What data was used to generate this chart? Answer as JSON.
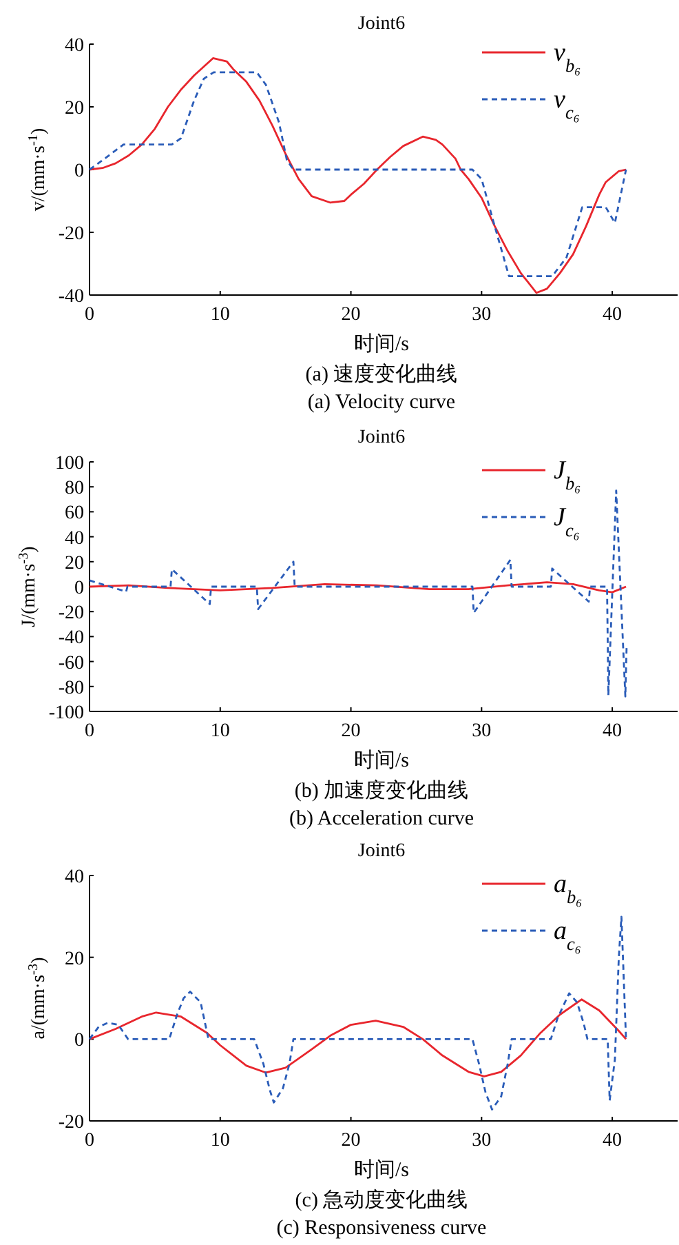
{
  "chart_data": [
    {
      "type": "line",
      "title": "Joint6",
      "xlabel": "时间/s",
      "ylabel": "v/(mm·s$^{-1}$)",
      "xlim": [
        0,
        45
      ],
      "xticks": [
        0,
        10,
        20,
        30,
        40
      ],
      "ylim": [
        -40,
        40
      ],
      "yticks": [
        -40,
        -20,
        0,
        20,
        40
      ],
      "legend": "top right",
      "grid": false,
      "marker": "none",
      "annotations": [
        "(a) 速度变化曲线",
        "(a) Velocity curve"
      ],
      "series": [
        {
          "name": "v$_{b₆}$",
          "color": "#e8262d",
          "line_style": "solid",
          "x": [
            0,
            1,
            2,
            3,
            4,
            5,
            6,
            7,
            8,
            9.45,
            10.5,
            11,
            12,
            13,
            14,
            15,
            16,
            17,
            18.4,
            19.5,
            20,
            21,
            22,
            23,
            24,
            25.5,
            26.5,
            27,
            28,
            28.4,
            29,
            30,
            31,
            32,
            33,
            34.2,
            35,
            36,
            37,
            38,
            39,
            39.5,
            40.5,
            41.05
          ],
          "values": [
            0,
            0.5,
            2,
            4.5,
            8,
            13,
            20,
            25.5,
            30,
            35.5,
            34.5,
            32,
            28,
            22,
            14,
            5,
            -3,
            -8.5,
            -10.5,
            -10,
            -8,
            -4.5,
            0,
            4,
            7.5,
            10.5,
            9.5,
            8,
            3.5,
            0,
            -3,
            -9,
            -18,
            -26,
            -33,
            -39.3,
            -38,
            -33,
            -27,
            -18,
            -8,
            -4,
            -0.5,
            0
          ]
        },
        {
          "name": "v$_{c₆}$",
          "color": "#2a5cb8",
          "line_style": "dashed",
          "x": [
            0,
            1,
            2.6,
            6.3,
            7,
            8,
            8.75,
            9.5,
            12.8,
            13.5,
            14.5,
            15.1,
            15.6,
            29.3,
            30,
            31,
            32.1,
            35.4,
            36.5,
            37.7,
            39.5,
            40.2,
            41.05
          ],
          "values": [
            0,
            3,
            8,
            8,
            10,
            22,
            29,
            31,
            31,
            27,
            15,
            3,
            0,
            0,
            -3,
            -18,
            -34,
            -34,
            -28,
            -12,
            -12,
            -17,
            0
          ]
        }
      ]
    },
    {
      "type": "line",
      "title": "Joint6",
      "xlabel": "时间/s",
      "ylabel": "J/(mm·s$^{-3}$)",
      "xlim": [
        0,
        45
      ],
      "xticks": [
        0,
        10,
        20,
        30,
        40
      ],
      "ylim": [
        -100,
        100
      ],
      "yticks": [
        -100,
        -80,
        -60,
        -40,
        -20,
        0,
        20,
        40,
        60,
        80,
        100
      ],
      "legend": "top right",
      "grid": false,
      "marker": "none",
      "annotations": [
        "(b) 加速度变化曲线",
        "(b) Acceleration curve"
      ],
      "series": [
        {
          "name": "J$_{b₆}$",
          "color": "#e8262d",
          "line_style": "solid",
          "x": [
            0,
            3,
            6,
            10,
            14,
            18,
            22,
            26,
            29,
            32,
            35,
            37,
            39,
            40,
            41.05
          ],
          "values": [
            0,
            1,
            -1,
            -3,
            -1,
            2,
            1,
            -2,
            -2,
            1,
            3.5,
            2,
            -3,
            -4.5,
            0
          ]
        },
        {
          "name": "J$_{c₆}$",
          "color": "#2a5cb8",
          "line_style": "dashed",
          "x": [
            0,
            2.8,
            2.9,
            6.2,
            6.3,
            9.2,
            9.3,
            12.8,
            12.9,
            15.6,
            15.7,
            29.3,
            29.4,
            32.2,
            32.3,
            35.3,
            35.4,
            38.2,
            38.3,
            39.6,
            39.7,
            40.3,
            41.0,
            41.1
          ],
          "values": [
            5,
            -4,
            0,
            0,
            14,
            -14,
            0,
            0,
            -18,
            20,
            0,
            0,
            -21,
            21.5,
            0,
            0,
            14.5,
            -12,
            0,
            0,
            -87,
            77,
            -88,
            -47
          ]
        }
      ]
    },
    {
      "type": "line",
      "title": "Joint6",
      "xlabel": "时间/s",
      "ylabel": "a/(mm·s$^{-3}$)",
      "xlim": [
        0,
        45
      ],
      "xticks": [
        0,
        10,
        20,
        30,
        40
      ],
      "ylim": [
        -20,
        40
      ],
      "yticks": [
        -20,
        0,
        20,
        40
      ],
      "legend": "top right",
      "grid": false,
      "marker": "none",
      "annotations": [
        "(c) 急动度变化曲线",
        "(c) Responsiveness curve"
      ],
      "series": [
        {
          "name": "a$_{b₆}$",
          "color": "#e8262d",
          "line_style": "solid",
          "x": [
            0,
            2,
            4,
            5.1,
            7,
            9,
            10,
            12,
            13.5,
            15,
            17,
            18.5,
            20,
            21.9,
            24,
            25.5,
            27,
            29,
            30.2,
            31.5,
            33,
            34.5,
            36,
            37.65,
            39,
            40.5,
            41.05
          ],
          "values": [
            0,
            2.5,
            5.5,
            6.5,
            5.5,
            1.5,
            -1.5,
            -6.5,
            -8.2,
            -7,
            -2.5,
            1,
            3.5,
            4.5,
            3,
            0,
            -4,
            -8,
            -9.1,
            -8,
            -4,
            1.5,
            6,
            9.7,
            7,
            2,
            0
          ]
        },
        {
          "name": "a$_{c₆}$",
          "color": "#2a5cb8",
          "line_style": "dashed",
          "x": [
            0,
            0.7,
            1.4,
            2.2,
            2.95,
            6.1,
            6.7,
            7.2,
            7.7,
            8.5,
            9.1,
            12.6,
            13.3,
            13.8,
            14.1,
            14.8,
            15.3,
            15.6,
            29.3,
            29.8,
            30.3,
            30.8,
            31.5,
            32,
            32.3,
            35.3,
            35.8,
            36.7,
            37.3,
            37.8,
            38.1,
            39.65,
            39.8,
            40.2,
            40.5,
            40.7,
            41.05
          ],
          "values": [
            0,
            3,
            4,
            3.5,
            0,
            0,
            6,
            10,
            11.6,
            9,
            0,
            0,
            -6,
            -12.5,
            -15.5,
            -12,
            -6,
            0,
            0,
            -6,
            -13,
            -17.2,
            -14,
            -6,
            0,
            0,
            5,
            11.2,
            9,
            4,
            0,
            0,
            -15,
            -5,
            20,
            29.9,
            0
          ]
        }
      ]
    }
  ]
}
